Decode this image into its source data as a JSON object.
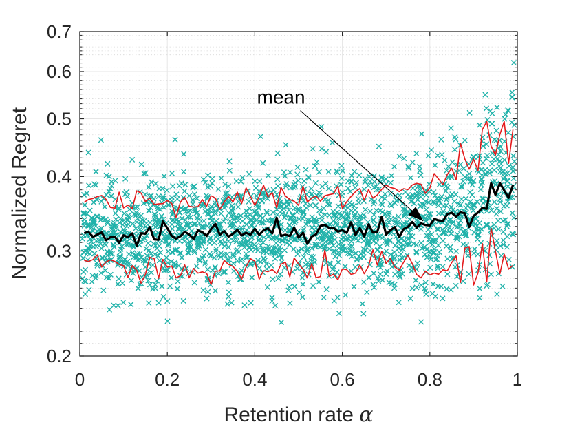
{
  "chart_data": {
    "type": "scatter",
    "title": "",
    "xlabel": "Retention rate ",
    "xlabel_symbol": "α",
    "ylabel": "Normalized Regret",
    "xlim": [
      0,
      1
    ],
    "ylim": [
      0.2,
      0.7
    ],
    "y_scale": "log",
    "grid": true,
    "x_ticks": [
      0,
      0.2,
      0.4,
      0.6,
      0.8,
      1
    ],
    "x_tick_labels": [
      "0",
      "0.2",
      "0.4",
      "0.6",
      "0.8",
      "1"
    ],
    "y_ticks": [
      0.2,
      0.3,
      0.4,
      0.5,
      0.6,
      0.7
    ],
    "y_tick_labels": [
      "0.2",
      "0.3",
      "0.4",
      "0.5",
      "0.6",
      "0.7"
    ],
    "annotation": {
      "text": "mean",
      "x_text": 0.46,
      "y_text": 0.53,
      "x_arrow": 0.785,
      "y_arrow": 0.337
    },
    "colors": {
      "scatter": "#20b2aa",
      "mean": "#000000",
      "bounds": "#e41a1c",
      "axis": "#262626",
      "grid": "#e6e6e6"
    },
    "mean_anchors": [
      [
        0.01,
        0.318
      ],
      [
        0.06,
        0.32
      ],
      [
        0.1,
        0.316
      ],
      [
        0.2,
        0.324
      ],
      [
        0.3,
        0.323
      ],
      [
        0.4,
        0.322
      ],
      [
        0.5,
        0.325
      ],
      [
        0.6,
        0.326
      ],
      [
        0.7,
        0.327
      ],
      [
        0.78,
        0.33
      ],
      [
        0.82,
        0.34
      ],
      [
        0.86,
        0.35
      ],
      [
        0.9,
        0.355
      ],
      [
        0.95,
        0.37
      ],
      [
        0.99,
        0.39
      ]
    ],
    "upper_anchors": [
      [
        0.01,
        0.36
      ],
      [
        0.1,
        0.366
      ],
      [
        0.3,
        0.37
      ],
      [
        0.5,
        0.372
      ],
      [
        0.6,
        0.372
      ],
      [
        0.7,
        0.378
      ],
      [
        0.78,
        0.385
      ],
      [
        0.82,
        0.395
      ],
      [
        0.86,
        0.415
      ],
      [
        0.9,
        0.43
      ],
      [
        0.94,
        0.475
      ],
      [
        0.99,
        0.49
      ]
    ],
    "lower_anchors": [
      [
        0.01,
        0.285
      ],
      [
        0.1,
        0.28
      ],
      [
        0.3,
        0.28
      ],
      [
        0.5,
        0.281
      ],
      [
        0.6,
        0.281
      ],
      [
        0.7,
        0.282
      ],
      [
        0.78,
        0.283
      ],
      [
        0.82,
        0.285
      ],
      [
        0.86,
        0.286
      ],
      [
        0.9,
        0.29
      ],
      [
        0.95,
        0.29
      ],
      [
        0.99,
        0.29
      ]
    ],
    "scatter_spread_anchors": [
      [
        0,
        0.11
      ],
      [
        0.5,
        0.115
      ],
      [
        0.75,
        0.12
      ],
      [
        0.85,
        0.14
      ],
      [
        0.9,
        0.16
      ],
      [
        1,
        0.22
      ]
    ]
  }
}
